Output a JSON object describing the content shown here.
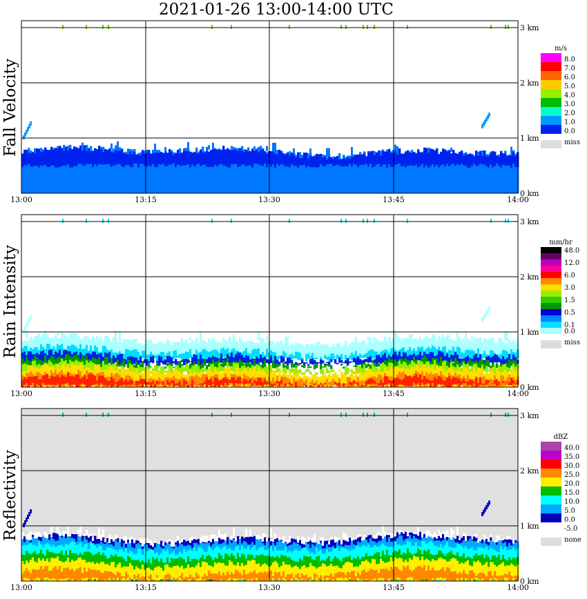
{
  "title": "2021-01-26   13:00-14:00 UTC",
  "chart_data": [
    {
      "type": "heatmap",
      "title": "Fall Velocity",
      "unit": "m/s",
      "x_ticks": [
        "13:00",
        "13:15",
        "13:30",
        "13:45",
        "14:00"
      ],
      "y_ticks": [
        "0 km",
        "1 km",
        "2 km",
        "3 km"
      ],
      "ylim": [
        0,
        3.0
      ],
      "background": "#ffffff",
      "legend": [
        {
          "label": "8.0",
          "color": "#ff00ff"
        },
        {
          "label": "7.0",
          "color": "#ff0000"
        },
        {
          "label": "6.0",
          "color": "#ff6600"
        },
        {
          "label": "5.0",
          "color": "#ffcc00"
        },
        {
          "label": "4.0",
          "color": "#99ee00"
        },
        {
          "label": "3.0",
          "color": "#00bb00"
        },
        {
          "label": "2.0",
          "color": "#00ffcc"
        },
        {
          "label": "1.0",
          "color": "#0099ff"
        },
        {
          "label": "0.0",
          "color": "#0022ee"
        }
      ],
      "miss_label": "miss",
      "rain_top_km": 0.75,
      "layers": [
        {
          "from_km": 0.0,
          "to_km": 0.75,
          "color": "#0077ff"
        },
        {
          "from_km": 0.5,
          "to_km": 0.75,
          "color": "#0022ee"
        }
      ]
    },
    {
      "type": "heatmap",
      "title": "Rain Intensity",
      "unit": "mm/hr",
      "x_ticks": [
        "13:00",
        "13:15",
        "13:30",
        "13:45",
        "14:00"
      ],
      "y_ticks": [
        "0 km",
        "1 km",
        "2 km",
        "3 km"
      ],
      "ylim": [
        0,
        3.0
      ],
      "background": "#ffffff",
      "legend": [
        {
          "label": "48.0",
          "color": "#000000"
        },
        {
          "label": "",
          "color": "#660066"
        },
        {
          "label": "12.0",
          "color": "#bb00bb"
        },
        {
          "label": "",
          "color": "#ff0099"
        },
        {
          "label": "6.0",
          "color": "#ff0000"
        },
        {
          "label": "",
          "color": "#ff8800"
        },
        {
          "label": "3.0",
          "color": "#ffdd00"
        },
        {
          "label": "",
          "color": "#99ee00"
        },
        {
          "label": "1.5",
          "color": "#33cc00"
        },
        {
          "label": "",
          "color": "#009900"
        },
        {
          "label": "0.5",
          "color": "#0000dd"
        },
        {
          "label": "",
          "color": "#0088ff"
        },
        {
          "label": "0.1",
          "color": "#00ddff"
        },
        {
          "label": "0.0",
          "color": "#aaffff"
        }
      ],
      "miss_label": "miss",
      "rain_top_km": 0.85,
      "layers": [
        {
          "from_km": 0.55,
          "to_km": 0.85,
          "color": "#aaffff"
        },
        {
          "from_km": 0.5,
          "to_km": 0.65,
          "color": "#00ddff"
        },
        {
          "from_km": 0.42,
          "to_km": 0.55,
          "color": "#0022dd"
        },
        {
          "from_km": 0.35,
          "to_km": 0.45,
          "color": "#009900"
        },
        {
          "from_km": 0.25,
          "to_km": 0.38,
          "color": "#99ee00"
        },
        {
          "from_km": 0.0,
          "to_km": 0.3,
          "color": "#ffdd00"
        },
        {
          "from_km": 0.02,
          "to_km": 0.18,
          "color": "#ff8800"
        },
        {
          "from_km": 0.04,
          "to_km": 0.12,
          "color": "#ff2200"
        }
      ]
    },
    {
      "type": "heatmap",
      "title": "Reflectivity",
      "unit": "dBZ",
      "x_ticks": [
        "13:00",
        "13:15",
        "13:30",
        "13:45",
        "14:00"
      ],
      "y_ticks": [
        "0 km",
        "1 km",
        "2 km",
        "3 km"
      ],
      "ylim": [
        0,
        3.0
      ],
      "background": "#e0e0e0",
      "legend": [
        {
          "label": "40.0",
          "color": "#aa44aa"
        },
        {
          "label": "35.0",
          "color": "#bb00cc"
        },
        {
          "label": "30.0",
          "color": "#ff0000"
        },
        {
          "label": "25.0",
          "color": "#ff8800"
        },
        {
          "label": "20.0",
          "color": "#ffee00"
        },
        {
          "label": "15.0",
          "color": "#00bb00"
        },
        {
          "label": "10.0",
          "color": "#00ffff"
        },
        {
          "label": "5.0",
          "color": "#00aaff"
        },
        {
          "label": "0.0",
          "color": "#0000bb"
        },
        {
          "label": "-5.0",
          "color": "#ffffff"
        }
      ],
      "miss_label": "none",
      "rain_top_km": 0.8,
      "layers": [
        {
          "from_km": 0.0,
          "to_km": 0.8,
          "color": "#ffffff"
        },
        {
          "from_km": 0.0,
          "to_km": 0.75,
          "color": "#0000bb"
        },
        {
          "from_km": 0.0,
          "to_km": 0.7,
          "color": "#00aaff"
        },
        {
          "from_km": 0.0,
          "to_km": 0.6,
          "color": "#00ffff"
        },
        {
          "from_km": 0.0,
          "to_km": 0.45,
          "color": "#00bb00"
        },
        {
          "from_km": 0.0,
          "to_km": 0.32,
          "color": "#ffee00"
        },
        {
          "from_km": 0.03,
          "to_km": 0.15,
          "color": "#ff8800"
        }
      ]
    }
  ]
}
